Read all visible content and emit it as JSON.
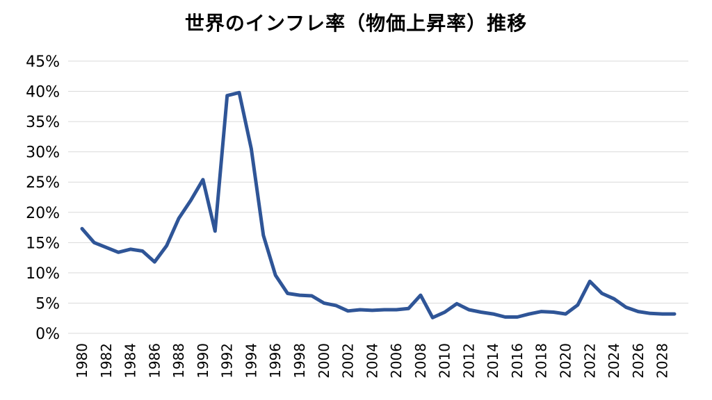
{
  "chart_data": {
    "type": "line",
    "title": "世界のインフレ率（物価上昇率）推移",
    "xlabel": "",
    "ylabel": "",
    "x": [
      1980,
      1981,
      1982,
      1983,
      1984,
      1985,
      1986,
      1987,
      1988,
      1989,
      1990,
      1991,
      1992,
      1993,
      1994,
      1995,
      1996,
      1997,
      1998,
      1999,
      2000,
      2001,
      2002,
      2003,
      2004,
      2005,
      2006,
      2007,
      2008,
      2009,
      2010,
      2011,
      2012,
      2013,
      2014,
      2015,
      2016,
      2017,
      2018,
      2019,
      2020,
      2021,
      2022,
      2023,
      2024,
      2025,
      2026,
      2027,
      2028,
      2029
    ],
    "x_tick_labels": [
      "1980",
      "1982",
      "1984",
      "1986",
      "1988",
      "1990",
      "1992",
      "1994",
      "1996",
      "1998",
      "2000",
      "2002",
      "2004",
      "2006",
      "2008",
      "2010",
      "2012",
      "2014",
      "2016",
      "2018",
      "2020",
      "2022",
      "2024",
      "2026",
      "2028"
    ],
    "series": [
      {
        "name": "",
        "color": "#2f5597",
        "values": [
          17.3,
          15.0,
          14.2,
          13.4,
          13.9,
          13.6,
          11.8,
          14.5,
          19.0,
          22.0,
          25.4,
          16.9,
          39.3,
          39.8,
          30.5,
          16.2,
          9.6,
          6.6,
          6.3,
          6.2,
          5.0,
          4.6,
          3.7,
          3.9,
          3.8,
          3.9,
          3.9,
          4.1,
          6.3,
          2.6,
          3.5,
          4.9,
          3.9,
          3.5,
          3.2,
          2.7,
          2.7,
          3.2,
          3.6,
          3.5,
          3.2,
          4.7,
          8.6,
          6.6,
          5.7,
          4.3,
          3.6,
          3.3,
          3.2,
          3.2
        ]
      }
    ],
    "ylim": [
      0,
      45
    ],
    "y_ticks": [
      0,
      5,
      10,
      15,
      20,
      25,
      30,
      35,
      40,
      45
    ],
    "y_tick_labels": [
      "0%",
      "5%",
      "10%",
      "15%",
      "20%",
      "25%",
      "30%",
      "35%",
      "40%",
      "45%"
    ],
    "grid": true,
    "grid_color": "#d9d9d9",
    "legend": "none"
  }
}
